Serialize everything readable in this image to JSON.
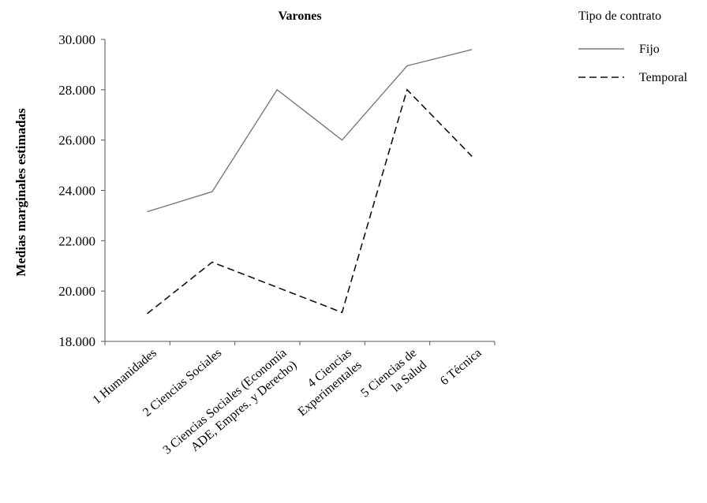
{
  "chart_data": {
    "type": "line",
    "title": "Varones",
    "ylabel": "Medias marginales estimadas",
    "xlabel": "",
    "ylim": [
      18000,
      30000
    ],
    "yticks": [
      18000,
      20000,
      22000,
      24000,
      26000,
      28000,
      30000
    ],
    "ytick_labels": [
      "18.000",
      "20.000",
      "22.000",
      "24.000",
      "26.000",
      "28.000",
      "30.000"
    ],
    "categories": [
      [
        "1 Humanidades"
      ],
      [
        "2 Ciencias Sociales"
      ],
      [
        "3 Ciencias Sociales (Economía",
        "ADE, Empres. y Derecho)"
      ],
      [
        "4 Ciencias",
        "Experimentales"
      ],
      [
        "5 Ciencias de",
        "la Salud"
      ],
      [
        "6 Técnica"
      ]
    ],
    "series": [
      {
        "name": "Fijo",
        "values": [
          23150,
          23950,
          28000,
          26000,
          28950,
          29600
        ],
        "color": "#7a7a7a",
        "dash": "solid"
      },
      {
        "name": "Temporal",
        "values": [
          19100,
          21150,
          20150,
          19150,
          28000,
          25350
        ],
        "color": "#111111",
        "dash": "dashed"
      }
    ],
    "legend": {
      "title": "Tipo de contrato",
      "position": "top-right"
    },
    "grid": false
  }
}
